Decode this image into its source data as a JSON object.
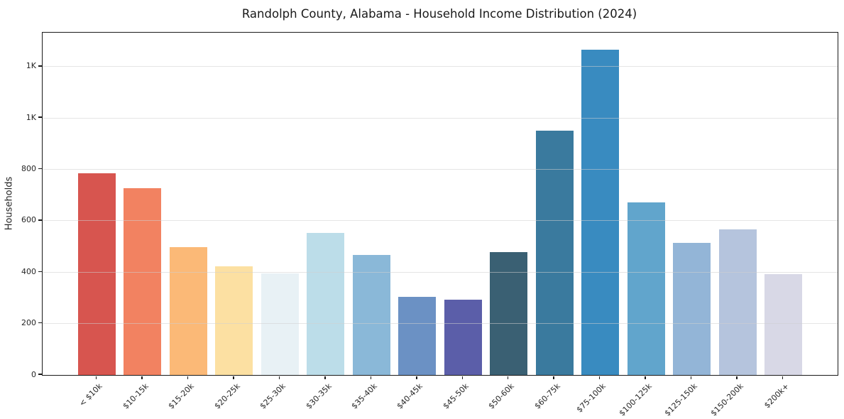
{
  "page": {
    "title": "Randolph County, Alabama - Household Income Distribution (2024)"
  },
  "colors": {
    "background": "#ffffff",
    "spine": "#1a1a1a",
    "grid": "#e6e6e6",
    "text": "#262626"
  },
  "chart_data": {
    "type": "bar",
    "title": "Randolph County, Alabama - Household Income Distribution (2024)",
    "xlabel": "",
    "ylabel": "Households",
    "ylim": [
      0,
      1332
    ],
    "grid": "horizontal",
    "legend": "none",
    "categories": [
      "< $10k",
      "$10-15k",
      "$15-20k",
      "$20-25k",
      "$25-30k",
      "$30-35k",
      "$35-40k",
      "$40-45k",
      "$45-50k",
      "$50-60k",
      "$60-75k",
      "$75-100k",
      "$100-125k",
      "$125-150k",
      "$150-200k",
      "$200k+"
    ],
    "values": [
      785,
      727,
      497,
      424,
      394,
      554,
      466,
      303,
      293,
      479,
      950,
      1265,
      672,
      513,
      566,
      392
    ],
    "bar_colors": [
      "#d7554f",
      "#f28261",
      "#fbb977",
      "#fce0a2",
      "#e8f1f5",
      "#bcdde9",
      "#8ab8d8",
      "#6b91c4",
      "#5b5ea9",
      "#3a6073",
      "#3a7a9e",
      "#398bc0",
      "#61a5cc",
      "#93b5d7",
      "#b5c4dd",
      "#d8d8e6"
    ],
    "yticks": [
      {
        "value": 0,
        "label": "0"
      },
      {
        "value": 200,
        "label": "200"
      },
      {
        "value": 400,
        "label": "400"
      },
      {
        "value": 600,
        "label": "600"
      },
      {
        "value": 800,
        "label": "800"
      },
      {
        "value": 1000,
        "label": "1K"
      },
      {
        "value": 1200,
        "label": "1K"
      }
    ]
  }
}
